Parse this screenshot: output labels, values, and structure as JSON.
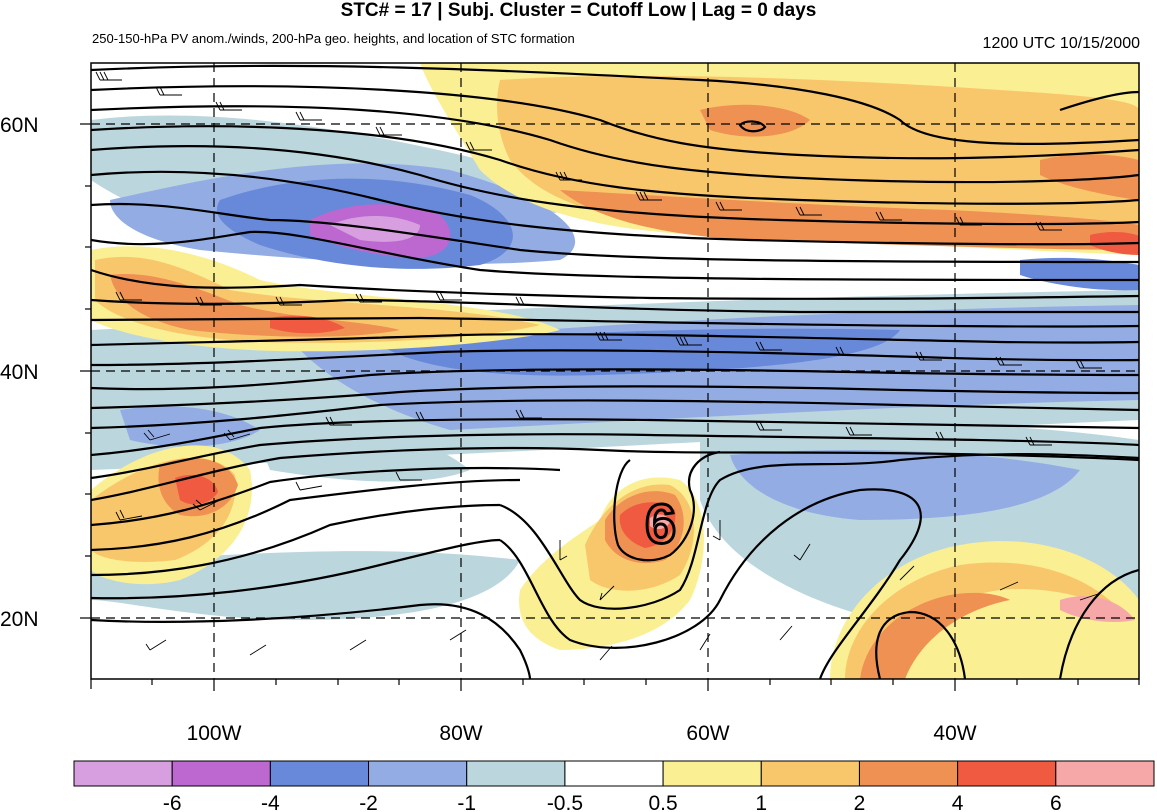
{
  "title": "STC# = 17 | Subj. Cluster = Cutoff Low | Lag = 0 days",
  "subtitle": "250-150-hPa PV anom./winds, 200-hPa geo. heights, and location of STC formation",
  "timestamp": "1200 UTC  10/15/2000",
  "map": {
    "lat_labels": [
      "60N",
      "40N",
      "20N"
    ],
    "lon_labels": [
      "100W",
      "80W",
      "60W",
      "40W"
    ],
    "stc_marker": "6"
  },
  "colorbar": {
    "colors": [
      "#d89fe0",
      "#bd67d1",
      "#6889d9",
      "#93ade4",
      "#bcd6de",
      "#ffffff",
      "#fbef94",
      "#f9c76b",
      "#ee9153",
      "#ef5a41",
      "#f6a8a8"
    ],
    "labels": [
      "-6",
      "-4",
      "-2",
      "-1",
      "-0.5",
      "0.5",
      "1",
      "2",
      "4",
      "6"
    ]
  }
}
